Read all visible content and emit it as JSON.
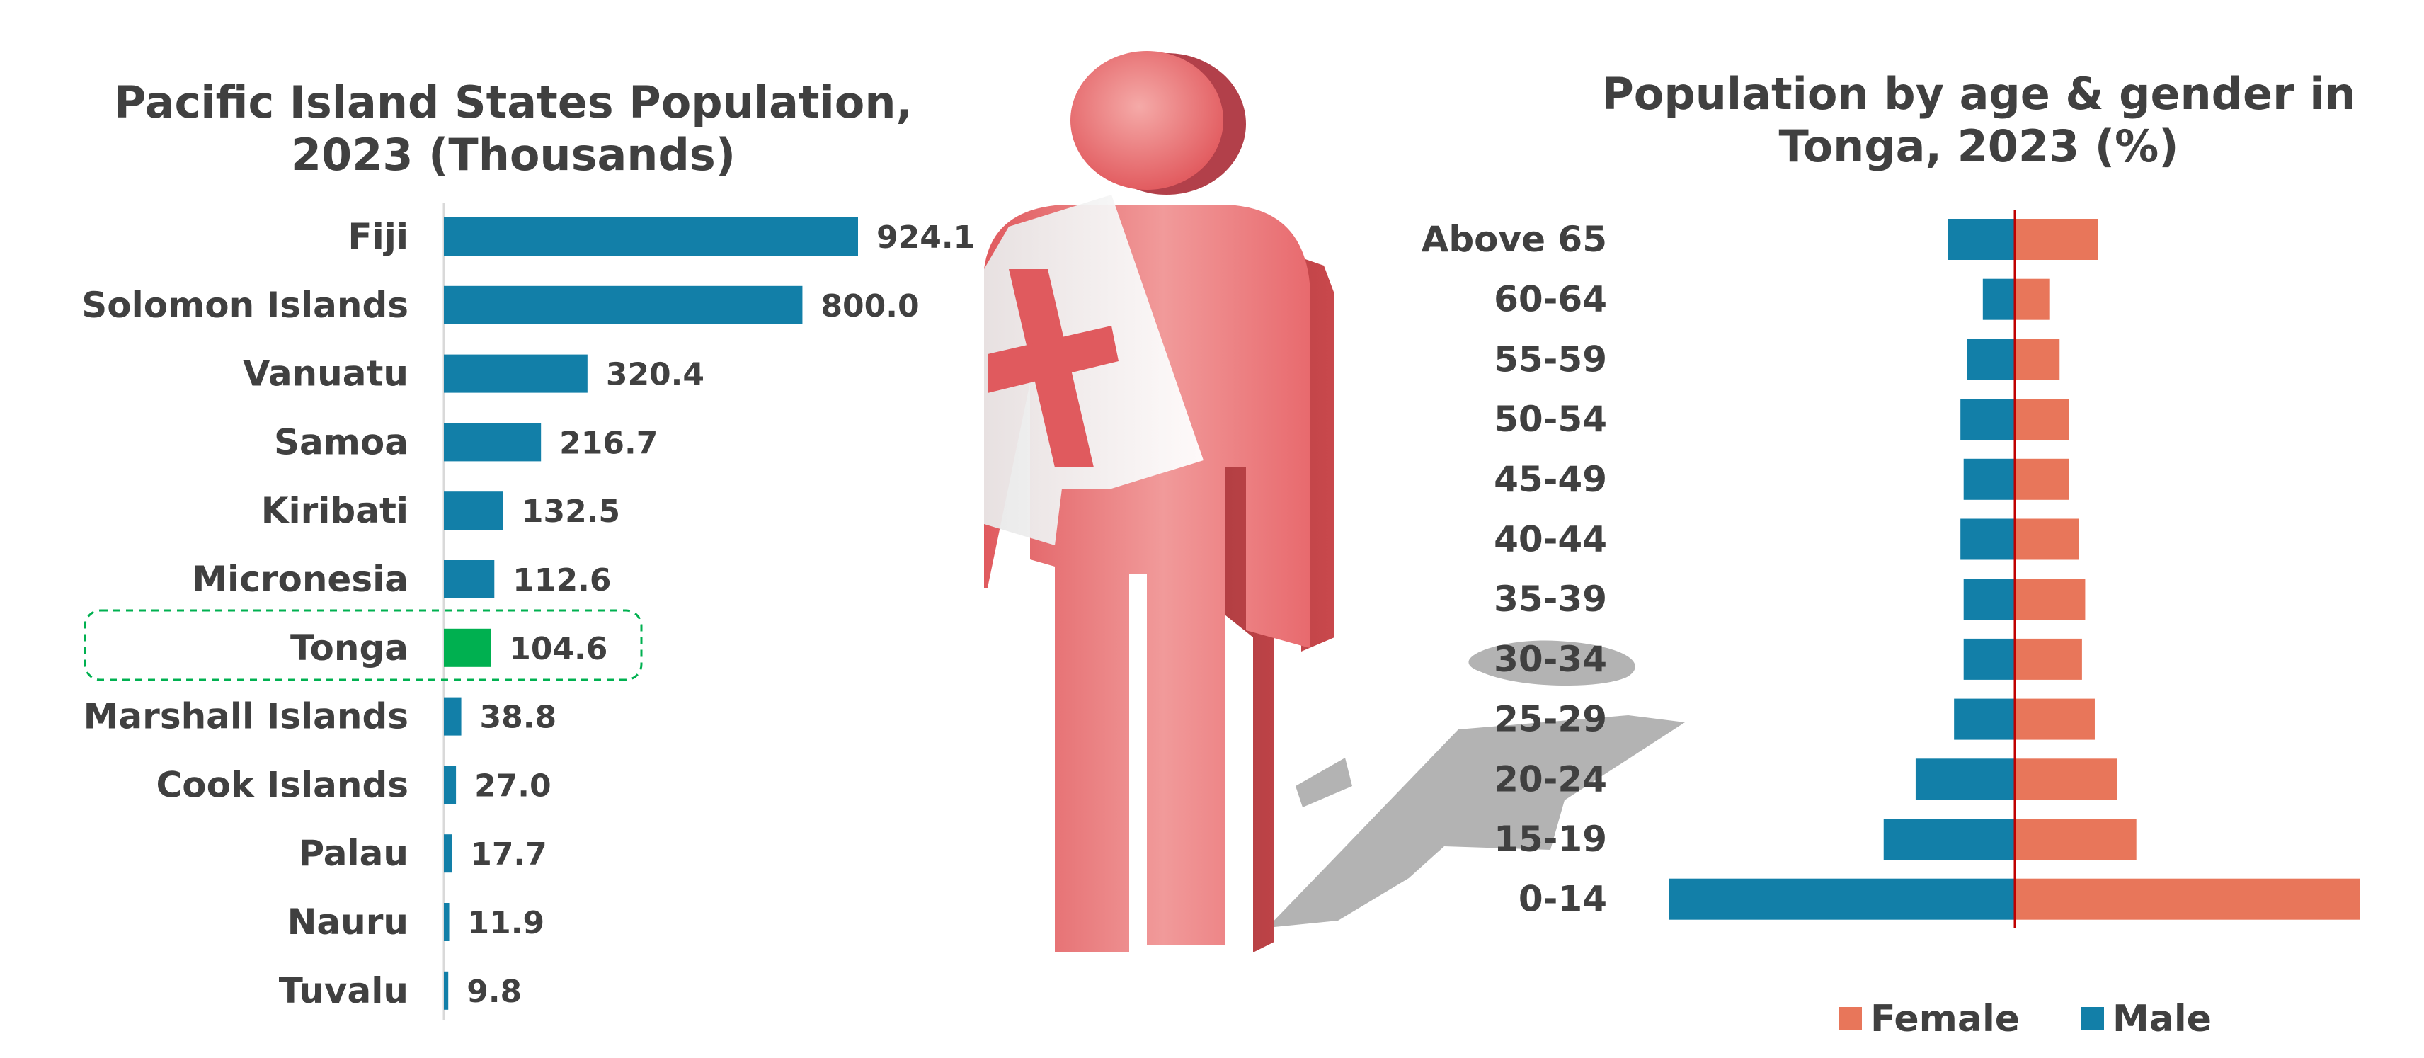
{
  "colors": {
    "bar": "#127fa8",
    "highlight": "#00b050",
    "female": "#e8765a",
    "male": "#127fa8",
    "axis_line": "#c00000",
    "text": "#404040",
    "highlight_box": "#00b050"
  },
  "illustration": {
    "icon": "tonga-flag-person-icon"
  },
  "chart_data": [
    {
      "type": "bar",
      "orientation": "horizontal",
      "title": "Pacific Island States Population, 2023 (Thousands)",
      "title_lines": [
        "Pacific Island States Population,",
        "2023 (Thousands)"
      ],
      "categories": [
        "Fiji",
        "Solomon Islands",
        "Vanuatu",
        "Samoa",
        "Kiribati",
        "Micronesia",
        "Tonga",
        "Marshall Islands",
        "Cook Islands",
        "Palau",
        "Nauru",
        "Tuvalu"
      ],
      "values": [
        924.1,
        800.0,
        320.4,
        216.7,
        132.5,
        112.6,
        104.6,
        38.8,
        27.0,
        17.7,
        11.9,
        9.8
      ],
      "value_labels": [
        "924.1",
        "800.0",
        "320.4",
        "216.7",
        "132.5",
        "112.6",
        "104.6",
        "38.8",
        "27.0",
        "17.7",
        "11.9",
        "9.8"
      ],
      "highlight": "Tonga",
      "grid": false
    },
    {
      "type": "bar",
      "orientation": "horizontal",
      "subtype": "population-pyramid",
      "title": "Population by age & gender in Tonga, 2023 (%)",
      "title_lines": [
        "Population by age & gender in",
        "Tonga, 2023 (%)"
      ],
      "categories": [
        "Above 65",
        "60-64",
        "55-59",
        "50-54",
        "45-49",
        "40-44",
        "35-39",
        "30-34",
        "25-29",
        "20-24",
        "15-19",
        "0-14"
      ],
      "series": [
        {
          "name": "Female",
          "values": [
            2.6,
            1.1,
            1.4,
            1.7,
            1.7,
            2.0,
            2.2,
            2.1,
            2.5,
            3.2,
            3.8,
            10.8
          ]
        },
        {
          "name": "Male",
          "values": [
            2.1,
            1.0,
            1.5,
            1.7,
            1.6,
            1.7,
            1.6,
            1.6,
            1.9,
            3.1,
            4.1,
            10.8
          ]
        }
      ],
      "legend": {
        "position": "bottom",
        "entries": [
          "Female",
          "Male"
        ]
      },
      "grid": false
    }
  ]
}
